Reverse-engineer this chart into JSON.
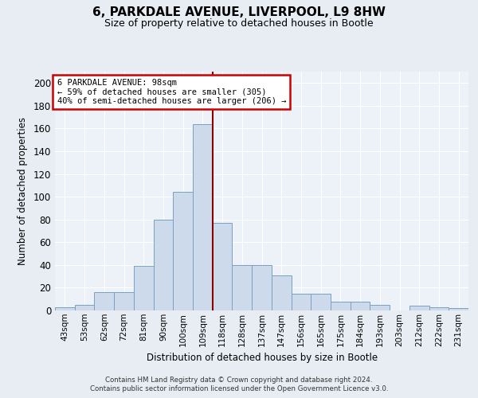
{
  "title1": "6, PARKDALE AVENUE, LIVERPOOL, L9 8HW",
  "title2": "Size of property relative to detached houses in Bootle",
  "xlabel": "Distribution of detached houses by size in Bootle",
  "ylabel": "Number of detached properties",
  "categories": [
    "43sqm",
    "53sqm",
    "62sqm",
    "72sqm",
    "81sqm",
    "90sqm",
    "100sqm",
    "109sqm",
    "118sqm",
    "128sqm",
    "137sqm",
    "147sqm",
    "156sqm",
    "165sqm",
    "175sqm",
    "184sqm",
    "193sqm",
    "203sqm",
    "212sqm",
    "222sqm",
    "231sqm"
  ],
  "values": [
    3,
    5,
    16,
    16,
    39,
    80,
    104,
    164,
    77,
    40,
    40,
    31,
    15,
    15,
    8,
    8,
    5,
    0,
    4,
    3,
    2
  ],
  "bar_color": "#ccdaeb",
  "bar_edge_color": "#7aa0c0",
  "vline_x_pos": 7.5,
  "vline_color": "#8b0000",
  "ylim": [
    0,
    210
  ],
  "yticks": [
    0,
    20,
    40,
    60,
    80,
    100,
    120,
    140,
    160,
    180,
    200
  ],
  "annotation_text": "6 PARKDALE AVENUE: 98sqm\n← 59% of detached houses are smaller (305)\n40% of semi-detached houses are larger (206) →",
  "annotation_box_color": "#ffffff",
  "annotation_box_edge": "#cc0000",
  "footnote1": "Contains HM Land Registry data © Crown copyright and database right 2024.",
  "footnote2": "Contains public sector information licensed under the Open Government Licence v3.0.",
  "background_color": "#e8edf4",
  "plot_bg_color": "#edf1f8",
  "grid_color": "#ffffff"
}
